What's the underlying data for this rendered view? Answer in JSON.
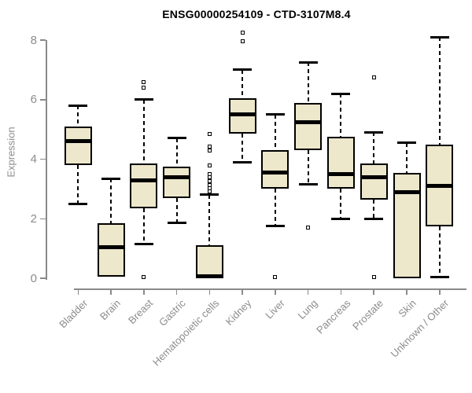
{
  "colors": {
    "box_fill": "#EDE7CB",
    "box_border": "#000000",
    "median": "#000000",
    "axis": "#8A8A8A",
    "tick_label": "#8C8C8C",
    "title": "#000000",
    "background": "#FFFFFF"
  },
  "chart_data": {
    "type": "boxplot",
    "title": "ENSG00000254109 - CTD-3107M8.4",
    "xlabel": "",
    "ylabel": "Expression",
    "ylim": [
      0,
      8
    ],
    "yticks": [
      0,
      2,
      4,
      6,
      8
    ],
    "grid": "off",
    "categories": [
      "Bladder",
      "Brain",
      "Breast",
      "Gastric",
      "Hematopoietic cells",
      "Kidney",
      "Liver",
      "Lung",
      "Pancreas",
      "Prostate",
      "Skin",
      "Unknown / Other"
    ],
    "series": [
      {
        "label": "Bladder",
        "whisker_low": 2.5,
        "q1": 3.8,
        "median": 4.6,
        "q3": 5.1,
        "whisker_high": 5.8,
        "outliers": []
      },
      {
        "label": "Brain",
        "whisker_low": 0.05,
        "q1": 0.05,
        "median": 1.05,
        "q3": 1.85,
        "whisker_high": 3.35,
        "outliers": []
      },
      {
        "label": "Breast",
        "whisker_low": 1.15,
        "q1": 2.35,
        "median": 3.3,
        "q3": 3.85,
        "whisker_high": 6.0,
        "outliers": [
          6.6,
          6.4,
          0.05
        ]
      },
      {
        "label": "Gastric",
        "whisker_low": 1.85,
        "q1": 2.7,
        "median": 3.4,
        "q3": 3.75,
        "whisker_high": 4.7,
        "outliers": []
      },
      {
        "label": "Hematopoietic cells",
        "whisker_low": 0.0,
        "q1": 0.0,
        "median": 0.07,
        "q3": 1.1,
        "whisker_high": 2.8,
        "outliers": [
          4.85,
          4.42,
          4.28,
          3.8,
          3.5,
          3.38,
          3.26,
          3.14,
          3.02,
          2.92
        ]
      },
      {
        "label": "Kidney",
        "whisker_low": 3.9,
        "q1": 4.85,
        "median": 5.5,
        "q3": 6.05,
        "whisker_high": 7.0,
        "outliers": [
          8.25,
          7.95
        ]
      },
      {
        "label": "Liver",
        "whisker_low": 1.75,
        "q1": 3.0,
        "median": 3.55,
        "q3": 4.3,
        "whisker_high": 5.5,
        "outliers": [
          0.05
        ]
      },
      {
        "label": "Lung",
        "whisker_low": 3.15,
        "q1": 4.3,
        "median": 5.25,
        "q3": 5.9,
        "whisker_high": 7.25,
        "outliers": [
          1.7
        ]
      },
      {
        "label": "Pancreas",
        "whisker_low": 2.0,
        "q1": 3.0,
        "median": 3.5,
        "q3": 4.75,
        "whisker_high": 6.2,
        "outliers": []
      },
      {
        "label": "Prostate",
        "whisker_low": 2.0,
        "q1": 2.65,
        "median": 3.4,
        "q3": 3.85,
        "whisker_high": 4.9,
        "outliers": [
          6.75,
          0.05
        ]
      },
      {
        "label": "Skin",
        "whisker_low": 0.0,
        "q1": 0.0,
        "median": 2.9,
        "q3": 3.55,
        "whisker_high": 4.55,
        "outliers": []
      },
      {
        "label": "Unknown / Other",
        "whisker_low": 0.05,
        "q1": 1.75,
        "median": 3.1,
        "q3": 4.5,
        "whisker_high": 8.1,
        "outliers": []
      }
    ]
  }
}
